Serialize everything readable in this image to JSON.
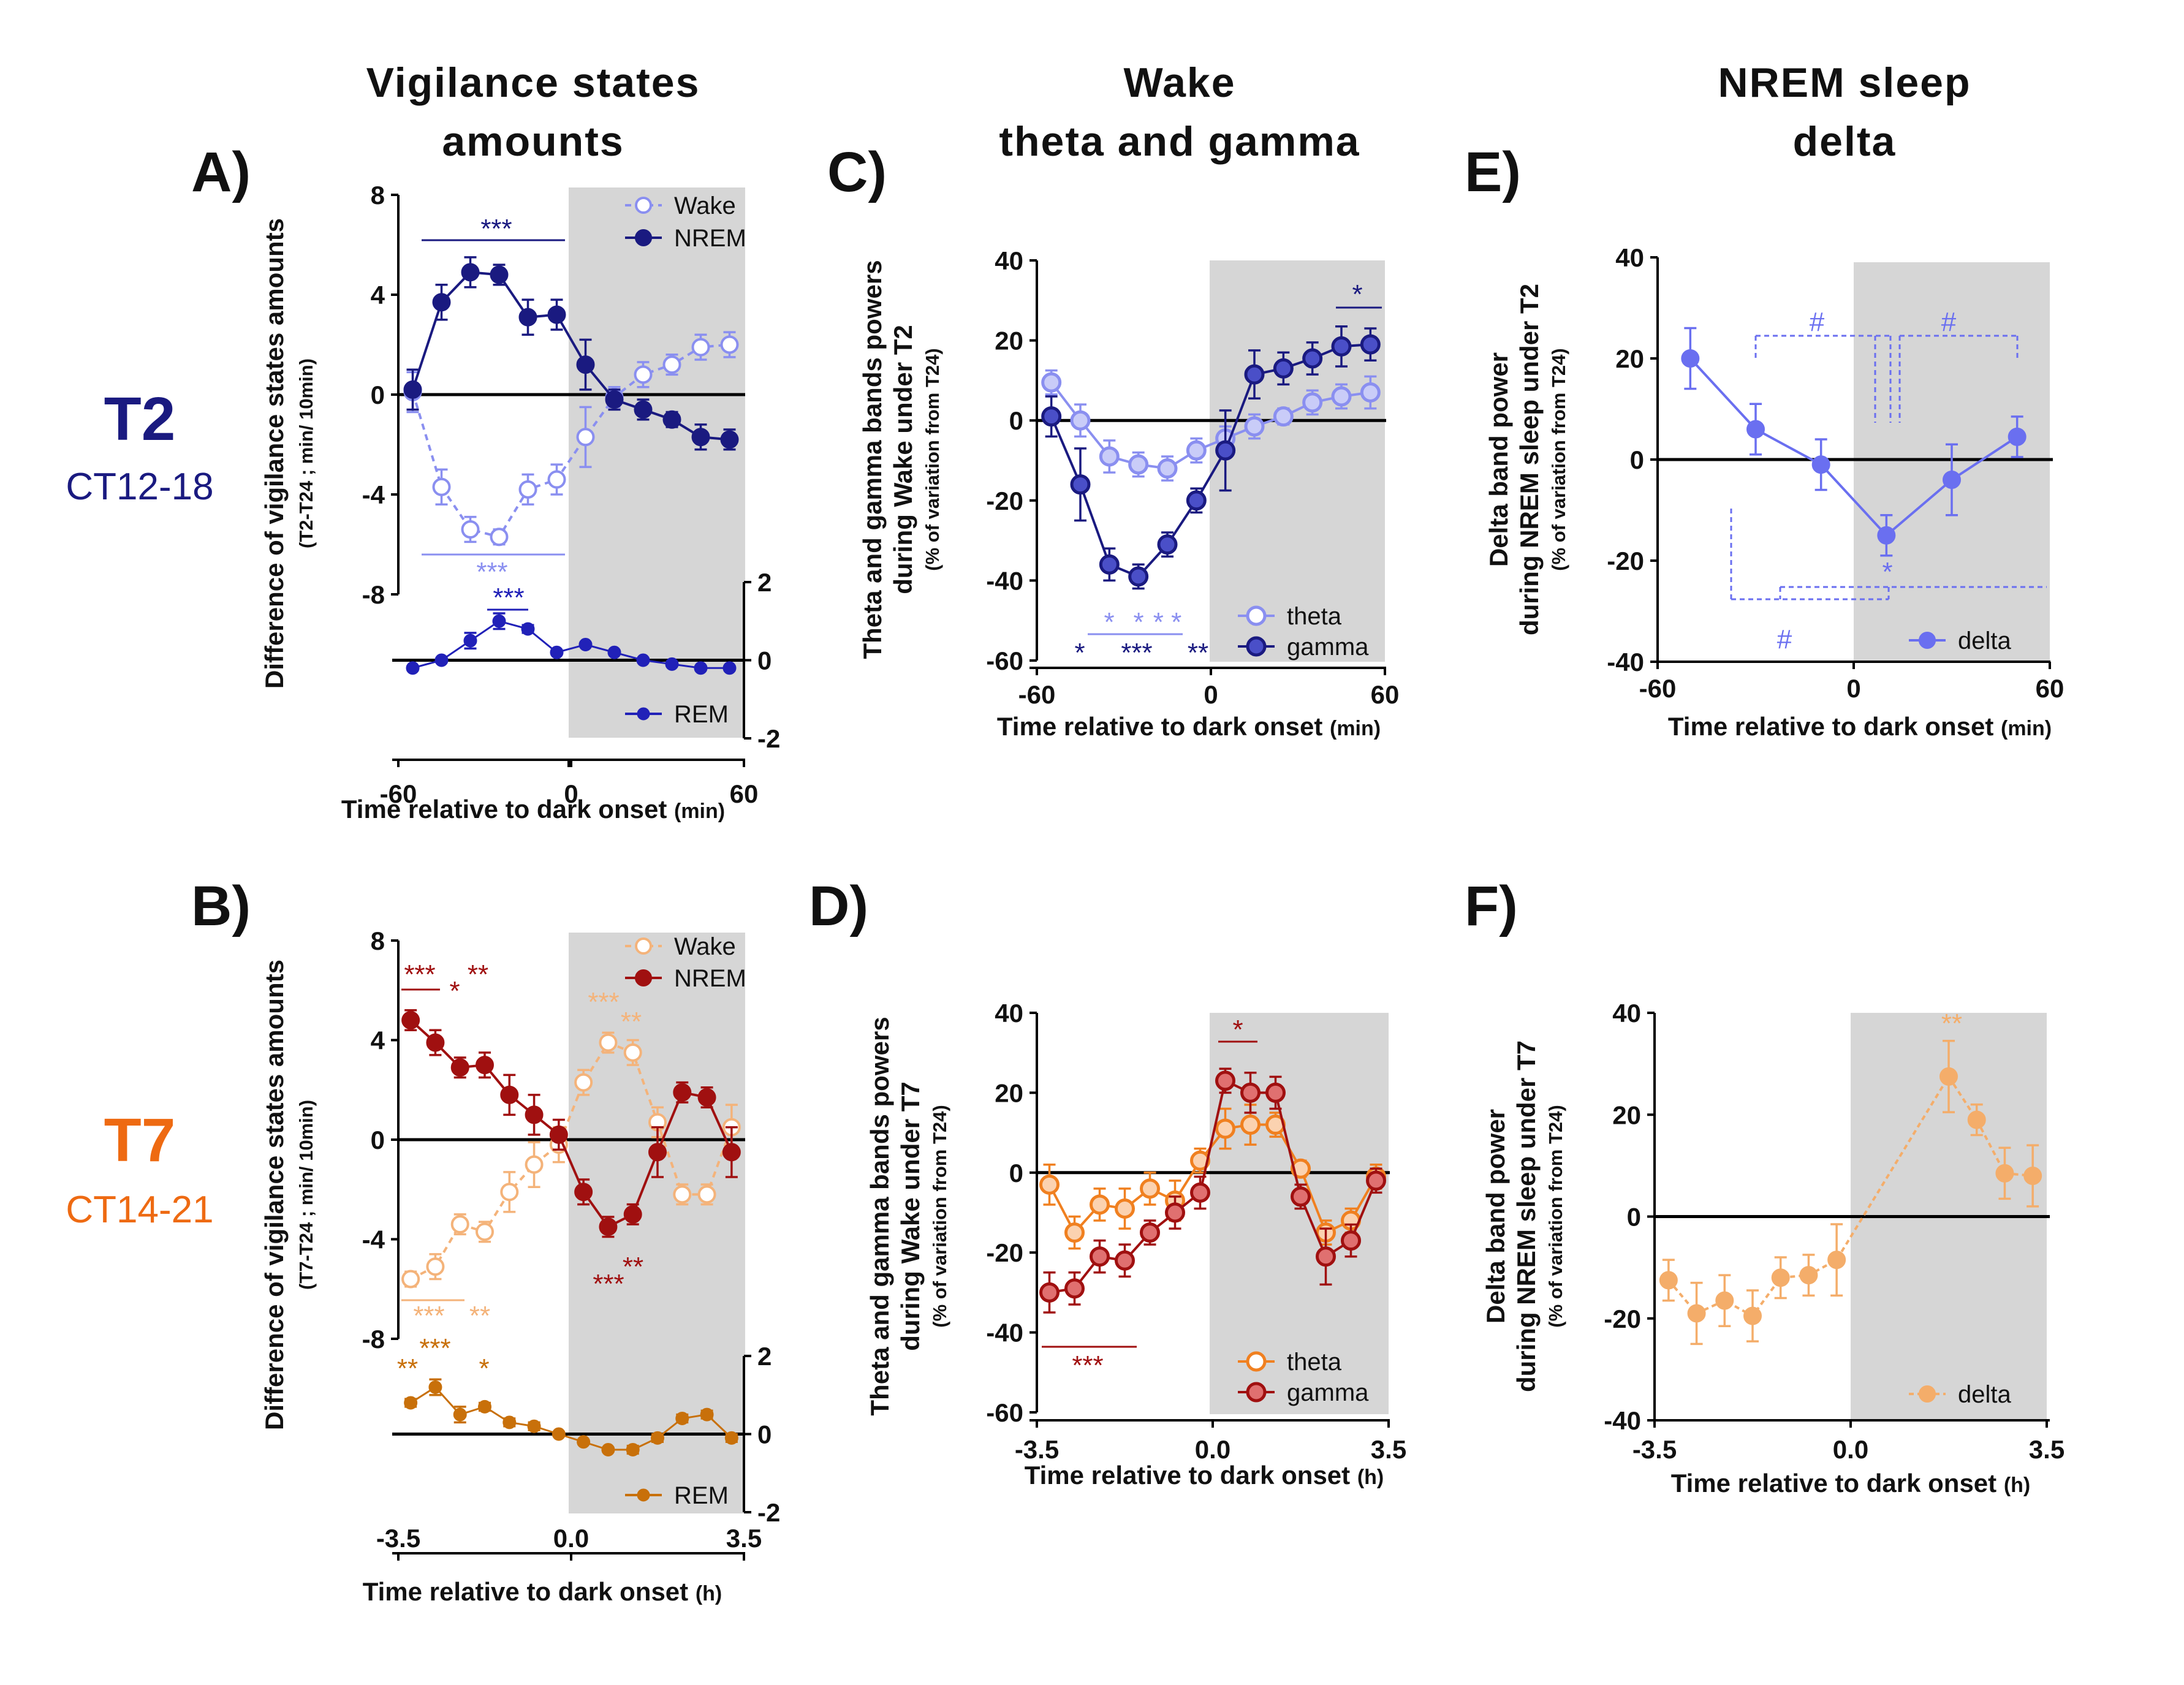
{
  "header": {
    "col1_line1": "Vigilance states",
    "col1_line2": "amounts",
    "col2_line1": "Wake",
    "col2_line2": "theta and gamma",
    "col3_line1": "NREM sleep",
    "col3_line2": "delta"
  },
  "rows": [
    {
      "label": "T2",
      "sub": "CT12-18",
      "color": "#1a1a80"
    },
    {
      "label": "T7",
      "sub": "CT14-21",
      "color": "#ee6a12"
    }
  ],
  "colors": {
    "wake_t2": "#8a8ff0",
    "nrem_t2": "#1a1a80",
    "rem_t2": "#2121b8",
    "theta_t2": "#8a8ff0",
    "gamma_t2": "#1a1a80",
    "delta_t2": "#6a6ff0",
    "wake_t7": "#f4b37a",
    "nrem_t7": "#a01010",
    "rem_t7": "#c8700a",
    "theta_t7": "#f08020",
    "gamma_t7": "#a01010",
    "delta_t7": "#f4ad6a",
    "dark": "#d6d6d6"
  },
  "chart_data": [
    {
      "id": "A",
      "type": "line",
      "title": "Vigilance states amounts",
      "ylabel": "Difference of vigilance states amounts",
      "ylabel_sub": "(T2-T24 ; min/ 10min)",
      "xlabel": "Time relative to dark onset",
      "xunit": "(min)",
      "xlim": [
        -60,
        60
      ],
      "xticks": [
        "-60",
        "0",
        "60"
      ],
      "ylim": [
        -8,
        8
      ],
      "yticks": [
        "8",
        "4",
        "0",
        "-4",
        "-8"
      ],
      "rem_ylim": [
        -2,
        2
      ],
      "rem_yticks": [
        "2",
        "0",
        "-2"
      ],
      "x": [
        -55,
        -45,
        -35,
        -25,
        -15,
        -5,
        5,
        15,
        25,
        35,
        45,
        55
      ],
      "series": [
        {
          "name": "Wake",
          "values": [
            0.1,
            -3.7,
            -5.4,
            -5.7,
            -3.8,
            -3.4,
            -1.7,
            -0.1,
            0.8,
            1.2,
            1.9,
            2.0
          ],
          "errors": [
            0.8,
            0.7,
            0.5,
            0.3,
            0.6,
            0.6,
            1.2,
            0.4,
            0.5,
            0.4,
            0.5,
            0.5
          ]
        },
        {
          "name": "NREM",
          "values": [
            0.2,
            3.7,
            4.9,
            4.8,
            3.1,
            3.2,
            1.2,
            -0.2,
            -0.6,
            -1.0,
            -1.7,
            -1.8
          ],
          "errors": [
            0.8,
            0.7,
            0.6,
            0.4,
            0.7,
            0.6,
            1.0,
            0.4,
            0.4,
            0.3,
            0.5,
            0.4
          ]
        },
        {
          "name": "REM",
          "values": [
            -0.2,
            0.0,
            0.5,
            1.0,
            0.8,
            0.2,
            0.4,
            0.2,
            0.0,
            -0.1,
            -0.2,
            -0.2
          ],
          "errors": [
            0.05,
            0.05,
            0.2,
            0.2,
            0.1,
            0.05,
            0.05,
            0.05,
            0.05,
            0.05,
            0.05,
            0.05
          ]
        }
      ],
      "dark_start": 0,
      "legend": "top-right",
      "annotations": [
        {
          "text": "***",
          "series": "NREM"
        },
        {
          "text": "***",
          "series": "Wake"
        },
        {
          "text": "***",
          "series": "REM"
        }
      ]
    },
    {
      "id": "B",
      "type": "line",
      "title": "Vigilance states amounts",
      "ylabel": "Difference of vigilance states amounts",
      "ylabel_sub": "(T7-T24 ; min/ 10min)",
      "xlabel": "Time relative to dark onset",
      "xunit": "(h)",
      "xlim": [
        -3.5,
        3.5
      ],
      "xticks": [
        "-3.5",
        "0.0",
        "3.5"
      ],
      "ylim": [
        -8,
        8
      ],
      "yticks": [
        "8",
        "4",
        "0",
        "-4",
        "-8"
      ],
      "rem_ylim": [
        -2,
        2
      ],
      "rem_yticks": [
        "2",
        "0",
        "-2"
      ],
      "x": [
        -3.25,
        -2.75,
        -2.25,
        -1.75,
        -1.25,
        -0.75,
        -0.25,
        0.25,
        0.75,
        1.25,
        1.75,
        2.25,
        2.75,
        3.25
      ],
      "series": [
        {
          "name": "Wake",
          "values": [
            -5.6,
            -5.1,
            -3.4,
            -3.7,
            -2.1,
            -1.0,
            -0.2,
            2.3,
            3.9,
            3.5,
            0.7,
            -2.2,
            -2.2,
            0.5
          ],
          "errors": [
            0.3,
            0.5,
            0.4,
            0.4,
            0.8,
            0.9,
            0.7,
            0.5,
            0.4,
            0.5,
            0.6,
            0.4,
            0.4,
            0.9
          ]
        },
        {
          "name": "NREM",
          "values": [
            4.8,
            3.9,
            2.9,
            3.0,
            1.8,
            1.0,
            0.2,
            -2.1,
            -3.5,
            -3.0,
            -0.5,
            1.9,
            1.7,
            -0.5
          ],
          "errors": [
            0.4,
            0.5,
            0.4,
            0.5,
            0.8,
            0.8,
            0.6,
            0.5,
            0.4,
            0.4,
            1.0,
            0.4,
            0.4,
            1.0
          ]
        },
        {
          "name": "REM",
          "values": [
            0.8,
            1.2,
            0.5,
            0.7,
            0.3,
            0.2,
            0.0,
            -0.2,
            -0.4,
            -0.4,
            -0.1,
            0.4,
            0.5,
            -0.1
          ],
          "errors": [
            0.1,
            0.2,
            0.2,
            0.1,
            0.1,
            0.1,
            0.05,
            0.05,
            0.05,
            0.1,
            0.1,
            0.1,
            0.1,
            0.1
          ]
        }
      ],
      "dark_start": 0,
      "legend": "top-right",
      "annotations": [
        {
          "text": "***",
          "series": "NREM"
        },
        {
          "text": "*",
          "series": "NREM"
        },
        {
          "text": "**",
          "series": "NREM"
        },
        {
          "text": "***",
          "series": "Wake"
        },
        {
          "text": "**",
          "series": "Wake"
        },
        {
          "text": "***",
          "series": "NREM"
        },
        {
          "text": "**",
          "series": "NREM"
        },
        {
          "text": "***",
          "series": "Wake"
        },
        {
          "text": "**",
          "series": "Wake"
        },
        {
          "text": "**",
          "series": "REM"
        },
        {
          "text": "***",
          "series": "REM"
        },
        {
          "text": "*",
          "series": "REM"
        }
      ]
    },
    {
      "id": "C",
      "type": "line",
      "title": "Wake theta and gamma",
      "ylabel_line1": "Theta and gamma bands powers",
      "ylabel_line2": "during Wake under T2",
      "ylabel_sub": "(% of variation from T24)",
      "xlabel": "Time relative to dark onset",
      "xunit": "(min)",
      "xlim": [
        -60,
        60
      ],
      "xticks": [
        "-60",
        "0",
        "60"
      ],
      "ylim": [
        -60,
        40
      ],
      "yticks": [
        "40",
        "20",
        "0",
        "-20",
        "-40",
        "-60"
      ],
      "x": [
        -55,
        -45,
        -35,
        -25,
        -15,
        -5,
        5,
        15,
        25,
        35,
        45,
        55
      ],
      "series": [
        {
          "name": "theta",
          "values": [
            9.5,
            0,
            -9,
            -11,
            -12,
            -7.5,
            -4.5,
            -1.5,
            1,
            4.5,
            6,
            7
          ],
          "errors": [
            3,
            4,
            4,
            3,
            3,
            3,
            3,
            3,
            2,
            3,
            3,
            4
          ]
        },
        {
          "name": "gamma",
          "values": [
            1,
            -16,
            -36,
            -39,
            -31,
            -20,
            -7.5,
            11.5,
            13,
            15.5,
            18.5,
            19
          ],
          "errors": [
            5,
            9,
            4,
            3,
            3,
            3,
            10,
            6,
            4,
            4,
            5,
            4
          ]
        }
      ],
      "dark_start": 0,
      "legend": "bottom-right",
      "annotations": [
        {
          "text": "*"
        },
        {
          "text": "*"
        },
        {
          "text": "* *"
        },
        {
          "text": "*"
        },
        {
          "text": "***"
        },
        {
          "text": "**"
        }
      ]
    },
    {
      "id": "D",
      "type": "line",
      "title": "Wake theta and gamma",
      "ylabel_line1": "Theta and gamma bands powers",
      "ylabel_line2": "during Wake under T7",
      "ylabel_sub": "(% of variation from T24)",
      "xlabel": "Time relative to dark onset",
      "xunit": "(h)",
      "xlim": [
        -3.5,
        3.5
      ],
      "xticks": [
        "-3.5",
        "0.0",
        "3.5"
      ],
      "ylim": [
        -60,
        40
      ],
      "yticks": [
        "40",
        "20",
        "0",
        "-20",
        "-40",
        "-60"
      ],
      "x": [
        -3.25,
        -2.75,
        -2.25,
        -1.75,
        -1.25,
        -0.75,
        -0.25,
        0.25,
        0.75,
        1.25,
        1.75,
        2.25,
        2.75,
        3.25
      ],
      "series": [
        {
          "name": "theta",
          "values": [
            -3,
            -15,
            -8,
            -9,
            -4,
            -7,
            3,
            11,
            12,
            12,
            1,
            -15,
            -12,
            -1
          ],
          "errors": [
            5,
            4,
            4,
            5,
            4,
            5,
            3,
            5,
            5,
            3,
            2,
            3,
            3,
            3
          ]
        },
        {
          "name": "gamma",
          "values": [
            -30,
            -29,
            -21,
            -22,
            -15,
            -10,
            -5,
            23,
            20,
            20,
            -6,
            -21,
            -17,
            -2
          ],
          "errors": [
            5,
            4,
            4,
            4,
            3,
            4,
            4,
            3,
            5,
            4,
            3,
            7,
            4,
            3
          ]
        }
      ],
      "dark_start": 0,
      "legend": "bottom-right",
      "annotations": [
        {
          "text": "*"
        },
        {
          "text": "***"
        }
      ]
    },
    {
      "id": "E",
      "type": "line",
      "title": "NREM sleep delta",
      "ylabel_line1": "Delta band power",
      "ylabel_line2": "during NREM sleep under T2",
      "ylabel_sub": "(% of variation from T24)",
      "xlabel": "Time relative to dark onset",
      "xunit": "(min)",
      "xlim": [
        -60,
        60
      ],
      "xticks": [
        "-60",
        "0",
        "60"
      ],
      "ylim": [
        -40,
        40
      ],
      "yticks": [
        "40",
        "20",
        "0",
        "-20",
        "-40"
      ],
      "x": [
        -50,
        -30,
        -10,
        10,
        30,
        50
      ],
      "series": [
        {
          "name": "delta",
          "values": [
            20,
            6,
            -1,
            -15,
            -4,
            4.5
          ],
          "errors": [
            6,
            5,
            5,
            4,
            7,
            4
          ]
        }
      ],
      "dark_start": 0,
      "legend": "bottom-right",
      "annotations": [
        {
          "text": "#"
        },
        {
          "text": "#"
        },
        {
          "text": "*"
        },
        {
          "text": "#"
        }
      ]
    },
    {
      "id": "F",
      "type": "line",
      "title": "NREM sleep delta",
      "ylabel_line1": "Delta band power",
      "ylabel_line2": "during NREM sleep under T7",
      "ylabel_sub": "(% of variation from T24)",
      "xlabel": "Time relative to dark onset",
      "xunit": "(h)",
      "xlim": [
        -3.5,
        3.5
      ],
      "xticks": [
        "-3.5",
        "0.0",
        "3.5"
      ],
      "ylim": [
        -40,
        40
      ],
      "yticks": [
        "40",
        "20",
        "0",
        "-20",
        "-40"
      ],
      "x": [
        -3.25,
        -2.75,
        -2.25,
        -1.75,
        -1.25,
        -0.75,
        -0.25,
        1.75,
        2.25,
        2.75,
        3.25
      ],
      "series": [
        {
          "name": "delta",
          "values": [
            -12.5,
            -19,
            -16.5,
            -19.5,
            -12,
            -11.5,
            -8.5,
            27.5,
            19,
            8.5,
            8
          ],
          "errors": [
            4,
            6,
            5,
            5,
            4,
            4,
            7,
            7,
            3,
            5,
            6
          ]
        }
      ],
      "dark_start": 0,
      "legend": "bottom-right",
      "annotations": [
        {
          "text": "**"
        }
      ]
    }
  ]
}
